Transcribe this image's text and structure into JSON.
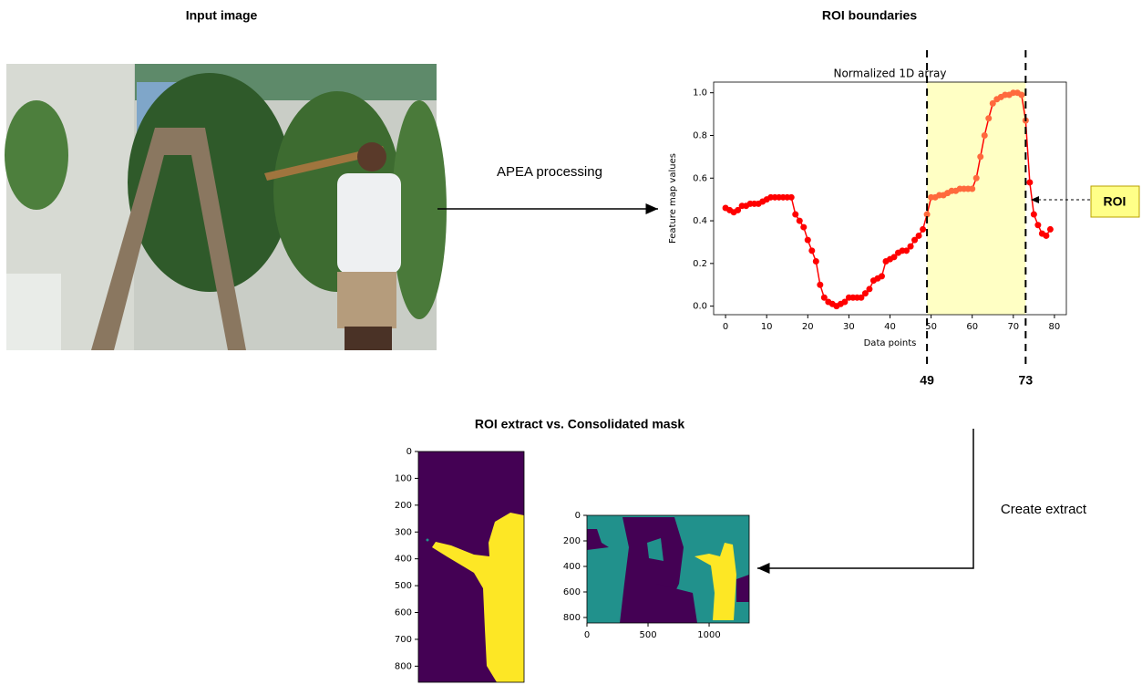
{
  "header": {
    "input_title": "Input image",
    "roi_title": "ROI boundaries",
    "extract_title": "ROI extract vs. Consolidated mask"
  },
  "edges": {
    "apea": "APEA processing",
    "create": "Create extract"
  },
  "roi_callout": "ROI",
  "chart_data": {
    "type": "line",
    "title": "Normalized 1D array",
    "x_label": "Data points",
    "y_label": "Feature map values",
    "x": [
      0,
      1,
      2,
      3,
      4,
      5,
      6,
      7,
      8,
      9,
      10,
      11,
      12,
      13,
      14,
      15,
      16,
      17,
      18,
      19,
      20,
      21,
      22,
      23,
      24,
      25,
      26,
      27,
      28,
      29,
      30,
      31,
      32,
      33,
      34,
      35,
      36,
      37,
      38,
      39,
      40,
      41,
      42,
      43,
      44,
      45,
      46,
      47,
      48,
      49,
      50,
      51,
      52,
      53,
      54,
      55,
      56,
      57,
      58,
      59,
      60,
      61,
      62,
      63,
      64,
      65,
      66,
      67,
      68,
      69,
      70,
      71,
      72,
      73,
      74,
      75,
      76,
      77,
      78,
      79
    ],
    "series": [
      {
        "color": "#ff0000",
        "roi_color": "#ff6a3d",
        "values": [
          0.46,
          0.45,
          0.44,
          0.45,
          0.47,
          0.47,
          0.48,
          0.48,
          0.48,
          0.49,
          0.5,
          0.51,
          0.51,
          0.51,
          0.51,
          0.51,
          0.51,
          0.43,
          0.4,
          0.37,
          0.31,
          0.26,
          0.21,
          0.1,
          0.04,
          0.02,
          0.01,
          0.0,
          0.01,
          0.02,
          0.04,
          0.04,
          0.04,
          0.04,
          0.06,
          0.08,
          0.12,
          0.13,
          0.14,
          0.21,
          0.22,
          0.23,
          0.25,
          0.26,
          0.26,
          0.28,
          0.31,
          0.33,
          0.36,
          0.43,
          0.51,
          0.51,
          0.52,
          0.52,
          0.53,
          0.54,
          0.54,
          0.55,
          0.55,
          0.55,
          0.55,
          0.6,
          0.7,
          0.8,
          0.88,
          0.95,
          0.97,
          0.98,
          0.99,
          0.99,
          1.0,
          1.0,
          0.99,
          0.87,
          0.58,
          0.43,
          0.38,
          0.34,
          0.33,
          0.36
        ]
      }
    ],
    "xlim": [
      -2.9,
      82.9
    ],
    "ylim": [
      -0.04,
      1.05
    ],
    "xticks": [
      0,
      10,
      20,
      30,
      40,
      50,
      60,
      70,
      80
    ],
    "yticks": [
      {
        "value": 0,
        "label": "0.0"
      },
      0.2,
      0.4,
      0.6,
      0.8,
      {
        "value": 1,
        "label": "1.0"
      }
    ],
    "roi_start": 49,
    "roi_end": 73,
    "roi_fill": "#ffffc4"
  },
  "mask_roi": {
    "ylim": [
      0,
      860
    ],
    "yticks": [
      0,
      100,
      200,
      300,
      400,
      500,
      600,
      700,
      800
    ]
  },
  "mask_full": {
    "xlim": [
      0,
      1328
    ],
    "ylim": [
      0,
      843
    ],
    "xticks": [
      0,
      500,
      1000
    ],
    "yticks": [
      0,
      200,
      400,
      600,
      800
    ]
  }
}
